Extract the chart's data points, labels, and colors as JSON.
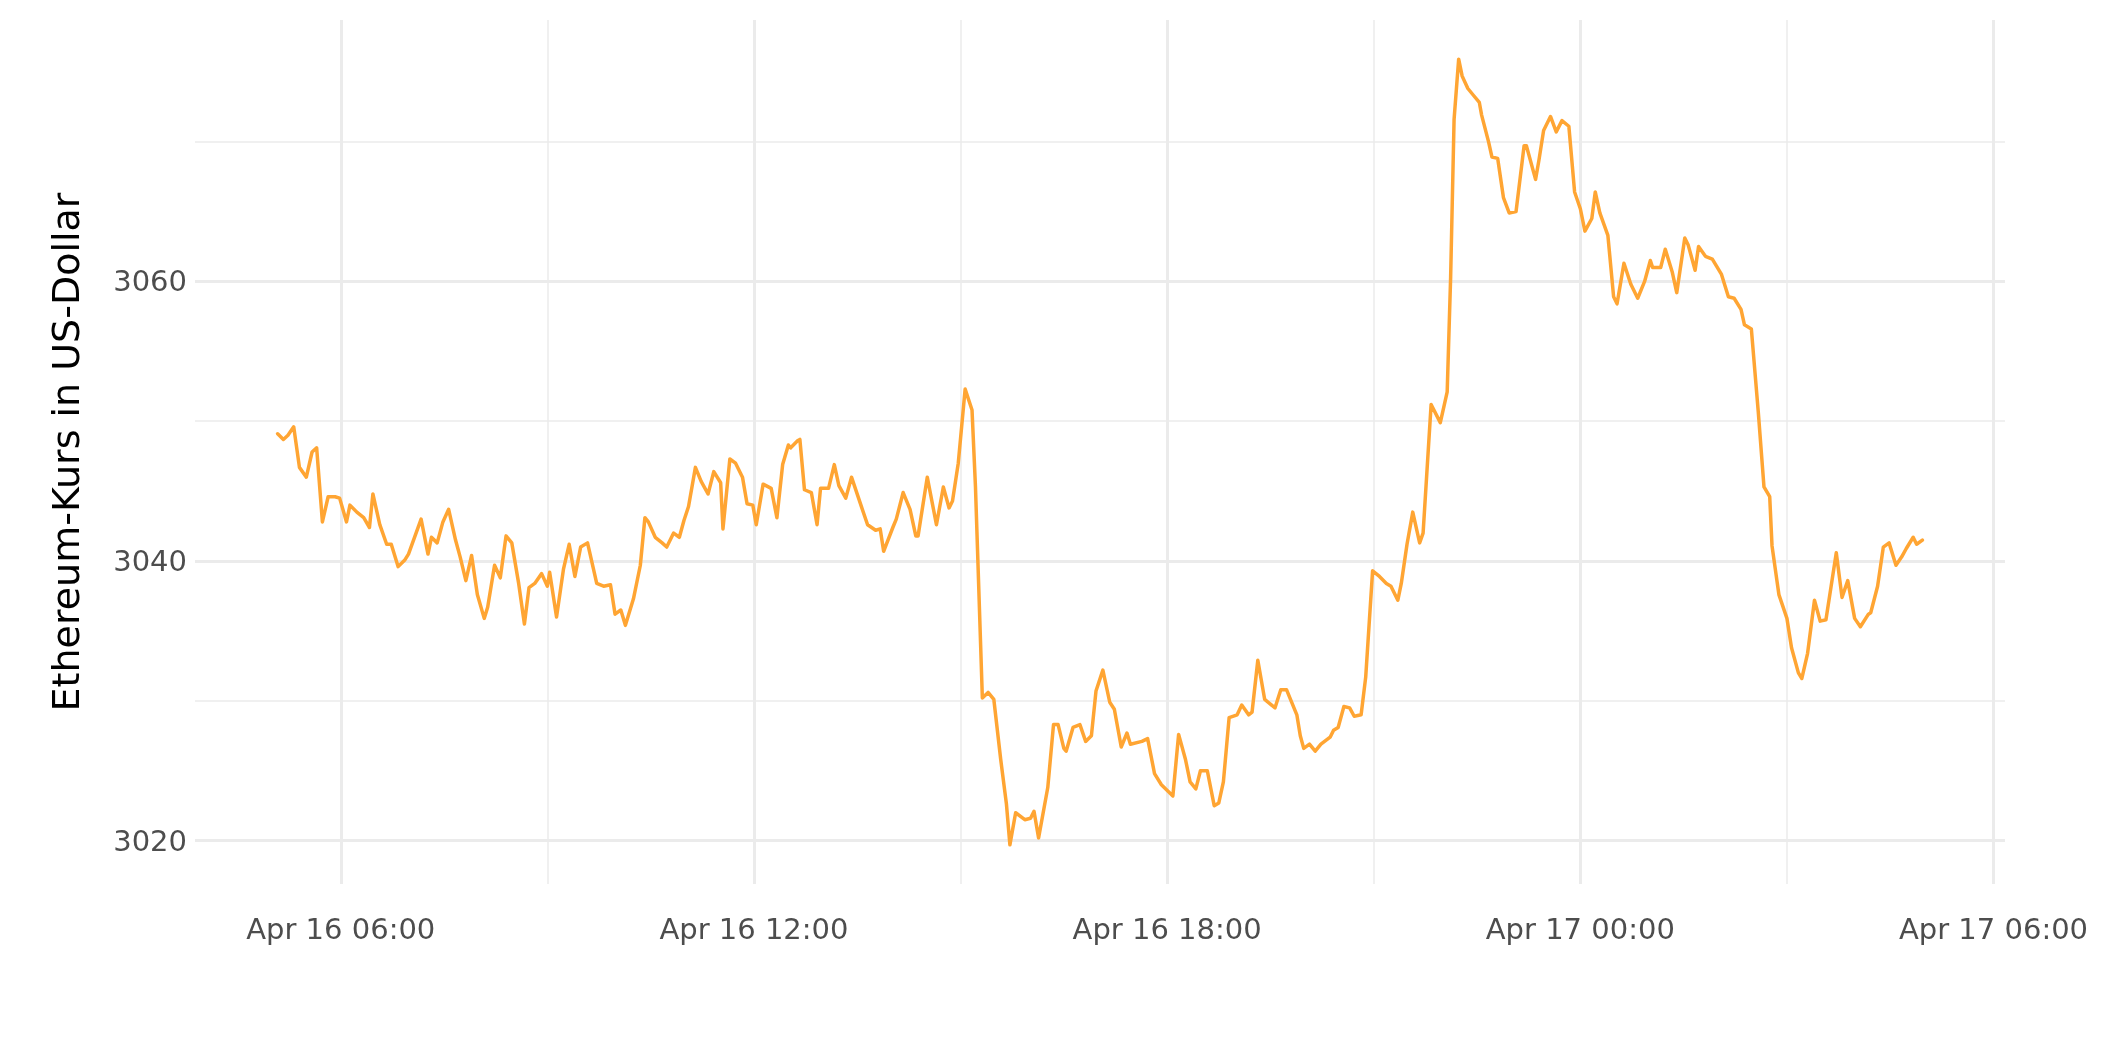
{
  "chart_data": {
    "type": "line",
    "ylabel": "Ethereum-Kurs in US-Dollar",
    "x": [
      "--04-16T05:05",
      "--04-16T05:10",
      "--04-16T05:14",
      "--04-16T05:19",
      "--04-16T05:24",
      "--04-16T05:30",
      "--04-16T05:35",
      "--04-16T05:39",
      "--04-16T05:44",
      "--04-16T05:49",
      "--04-16T05:55",
      "--04-16T05:59",
      "--04-16T06:05",
      "--04-16T06:08",
      "--04-16T06:14",
      "--04-16T06:20",
      "--04-16T06:25",
      "--04-16T06:28",
      "--04-16T06:34",
      "--04-16T06:40",
      "--04-16T06:44",
      "--04-16T06:50",
      "--04-16T06:56",
      "--04-16T06:59",
      "--04-16T07:10",
      "--04-16T07:16",
      "--04-16T07:19",
      "--04-16T07:24",
      "--04-16T07:29",
      "--04-16T07:34",
      "--04-16T07:40",
      "--04-16T07:44",
      "--04-16T07:49",
      "--04-16T07:54",
      "--04-16T07:59",
      "--04-16T08:05",
      "--04-16T08:08",
      "--04-16T08:14",
      "--04-16T08:19",
      "--04-16T08:24",
      "--04-16T08:29",
      "--04-16T08:35",
      "--04-16T08:40",
      "--04-16T08:44",
      "--04-16T08:49",
      "--04-16T08:55",
      "--04-16T09:00",
      "--04-16T09:02",
      "--04-16T09:08",
      "--04-16T09:14",
      "--04-16T09:19",
      "--04-16T09:24",
      "--04-16T09:29",
      "--04-16T09:35",
      "--04-16T09:40",
      "--04-16T09:43",
      "--04-16T09:49",
      "--04-16T09:55",
      "--04-16T09:59",
      "--04-16T10:04",
      "--04-16T10:08",
      "--04-16T10:15",
      "--04-16T10:21",
      "--04-16T10:25",
      "--04-16T10:28",
      "--04-16T10:34",
      "--04-16T10:40",
      "--04-16T10:44",
      "--04-16T10:50",
      "--04-16T10:55",
      "--04-16T10:59",
      "--04-16T11:03",
      "--04-16T11:09",
      "--04-16T11:14",
      "--04-16T11:20",
      "--04-16T11:25",
      "--04-16T11:31",
      "--04-16T11:33",
      "--04-16T11:39",
      "--04-16T11:44",
      "--04-16T11:47",
      "--04-16T11:50",
      "--04-16T11:54",
      "--04-16T11:59",
      "--04-16T12:02",
      "--04-16T12:08",
      "--04-16T12:15",
      "--04-16T12:20",
      "--04-16T12:25",
      "--04-16T12:30",
      "--04-16T12:32",
      "--04-16T12:38",
      "--04-16T12:40",
      "--04-16T12:44",
      "--04-16T12:50",
      "--04-16T12:55",
      "--04-16T12:58",
      "--04-16T13:05",
      "--04-16T13:10",
      "--04-16T13:14",
      "--04-16T13:20",
      "--04-16T13:25",
      "--04-16T13:34",
      "--04-16T13:39",
      "--04-16T13:46",
      "--04-16T13:50",
      "--04-16T13:53",
      "--04-16T14:01",
      "--04-16T14:04",
      "--04-16T14:10",
      "--04-16T14:16",
      "--04-16T14:21",
      "--04-16T14:23",
      "--04-16T14:31",
      "--04-16T14:39",
      "--04-16T14:45",
      "--04-16T14:50",
      "--04-16T14:53",
      "--04-16T14:58",
      "--04-16T15:04",
      "--04-16T15:10",
      "--04-16T15:13",
      "--04-16T15:19",
      "--04-16T15:24",
      "--04-16T15:29",
      "--04-16T15:35",
      "--04-16T15:40",
      "--04-16T15:43",
      "--04-16T15:48",
      "--04-16T15:56",
      "--04-16T16:01",
      "--04-16T16:04",
      "--04-16T16:08",
      "--04-16T16:16",
      "--04-16T16:21",
      "--04-16T16:25",
      "--04-16T16:30",
      "--04-16T16:32",
      "--04-16T16:38",
      "--04-16T16:44",
      "--04-16T16:49",
      "--04-16T16:54",
      "--04-16T16:58",
      "--04-16T17:04",
      "--04-16T17:10",
      "--04-16T17:14",
      "--04-16T17:20",
      "--04-16T17:25",
      "--04-16T17:28",
      "--04-16T17:38",
      "--04-16T17:43",
      "--04-16T17:49",
      "--04-16T17:55",
      "--04-16T18:05",
      "--04-16T18:10",
      "--04-16T18:16",
      "--04-16T18:20",
      "--04-16T18:25",
      "--04-16T18:29",
      "--04-16T18:35",
      "--04-16T18:41",
      "--04-16T18:45",
      "--04-16T18:49",
      "--04-16T18:54",
      "--04-16T19:01",
      "--04-16T19:05",
      "--04-16T19:11",
      "--04-16T19:14",
      "--04-16T19:19",
      "--04-16T19:25",
      "--04-16T19:34",
      "--04-16T19:39",
      "--04-16T19:44",
      "--04-16T19:48",
      "--04-16T19:53",
      "--04-16T19:56",
      "--04-16T19:59",
      "--04-16T20:04",
      "--04-16T20:09",
      "--04-16T20:14",
      "--04-16T20:22",
      "--04-16T20:25",
      "--04-16T20:29",
      "--04-16T20:34",
      "--04-16T20:39",
      "--04-16T20:43",
      "--04-16T20:49",
      "--04-16T20:53",
      "--04-16T20:59",
      "--04-16T21:05",
      "--04-16T21:11",
      "--04-16T21:15",
      "--04-16T21:21",
      "--04-16T21:24",
      "--04-16T21:29",
      "--04-16T21:34",
      "--04-16T21:40",
      "--04-16T21:43",
      "--04-16T21:50",
      "--04-16T21:58",
      "--04-16T22:04",
      "--04-16T22:07",
      "--04-16T22:10",
      "--04-16T22:14",
      "--04-16T22:17",
      "--04-16T22:22",
      "--04-16T22:27",
      "--04-16T22:32",
      "--04-16T22:34",
      "--04-16T22:40",
      "--04-16T22:43",
      "--04-16T22:48",
      "--04-16T22:53",
      "--04-16T22:58",
      "--04-16T23:04",
      "--04-16T23:11",
      "--04-16T23:13",
      "--04-16T23:21",
      "--04-16T23:24",
      "--04-16T23:28",
      "--04-16T23:34",
      "--04-16T23:39",
      "--04-16T23:44",
      "--04-16T23:50",
      "--04-16T23:55",
      "--04-17T00:00",
      "--04-17T00:04",
      "--04-17T00:10",
      "--04-17T00:13",
      "--04-17T00:17",
      "--04-17T00:24",
      "--04-17T00:29",
      "--04-17T00:32",
      "--04-17T00:38",
      "--04-17T00:44",
      "--04-17T00:50",
      "--04-17T00:56",
      "--04-17T01:01",
      "--04-17T01:03",
      "--04-17T01:10",
      "--04-17T01:14",
      "--04-17T01:20",
      "--04-17T01:24",
      "--04-17T01:31",
      "--04-17T01:34",
      "--04-17T01:40",
      "--04-17T01:43",
      "--04-17T01:49",
      "--04-17T01:55",
      "--04-17T02:03",
      "--04-17T02:09",
      "--04-17T02:14",
      "--04-17T02:20",
      "--04-17T02:23",
      "--04-17T02:29",
      "--04-17T02:35",
      "--04-17T02:40",
      "--04-17T02:45",
      "--04-17T02:47",
      "--04-17T02:53",
      "--04-17T03:00",
      "--04-17T03:04",
      "--04-17T03:10",
      "--04-17T03:13",
      "--04-17T03:18",
      "--04-17T03:24",
      "--04-17T03:29",
      "--04-17T03:34",
      "--04-17T03:43",
      "--04-17T03:48",
      "--04-17T03:53",
      "--04-17T03:59",
      "--04-17T04:04",
      "--04-17T04:11",
      "--04-17T04:13",
      "--04-17T04:19",
      "--04-17T04:24",
      "--04-17T04:29",
      "--04-17T04:35",
      "--04-17T04:40",
      "--04-17T04:44",
      "--04-17T04:50",
      "--04-17T04:53",
      "--04-17T04:58"
    ],
    "series": [
      {
        "color": "#ffa533",
        "values": [
          3049.1,
          3048.7,
          3049.0,
          3049.6,
          3046.7,
          3046.0,
          3047.8,
          3048.1,
          3042.8,
          3044.6,
          3044.6,
          3044.5,
          3042.8,
          3044.0,
          3043.5,
          3043.1,
          3042.4,
          3044.8,
          3042.6,
          3041.2,
          3041.2,
          3039.6,
          3040.1,
          3040.5,
          3043.0,
          3040.5,
          3041.7,
          3041.3,
          3042.8,
          3043.7,
          3041.5,
          3040.3,
          3038.6,
          3040.4,
          3037.6,
          3035.9,
          3036.7,
          3039.7,
          3038.8,
          3041.8,
          3041.3,
          3038.4,
          3035.5,
          3038.1,
          3038.4,
          3039.1,
          3038.2,
          3039.2,
          3036.0,
          3039.4,
          3041.2,
          3038.9,
          3041.0,
          3041.3,
          3039.5,
          3038.4,
          3038.2,
          3038.3,
          3036.2,
          3036.5,
          3035.4,
          3037.3,
          3039.7,
          3043.1,
          3042.8,
          3041.7,
          3041.3,
          3041.0,
          3042.0,
          3041.7,
          3042.9,
          3043.9,
          3046.7,
          3045.7,
          3044.8,
          3046.4,
          3045.6,
          3042.3,
          3047.3,
          3047.0,
          3046.5,
          3046.0,
          3044.1,
          3044.0,
          3042.6,
          3045.5,
          3045.2,
          3043.1,
          3046.9,
          3048.3,
          3048.1,
          3048.6,
          3048.7,
          3045.1,
          3044.9,
          3042.6,
          3045.2,
          3045.2,
          3046.9,
          3045.4,
          3044.5,
          3046.0,
          3043.8,
          3042.6,
          3042.2,
          3042.3,
          3040.7,
          3042.4,
          3043.0,
          3044.9,
          3043.7,
          3041.8,
          3041.8,
          3046.0,
          3042.6,
          3045.3,
          3043.8,
          3044.3,
          3047.0,
          3052.3,
          3050.8,
          3045.3,
          3030.2,
          3030.6,
          3030.1,
          3025.8,
          3022.6,
          3019.7,
          3022.0,
          3021.5,
          3021.6,
          3022.1,
          3020.2,
          3023.8,
          3028.3,
          3028.3,
          3026.6,
          3026.4,
          3028.1,
          3028.3,
          3027.1,
          3027.5,
          3030.7,
          3032.2,
          3029.9,
          3029.4,
          3026.7,
          3027.7,
          3026.9,
          3027.1,
          3027.3,
          3024.8,
          3024.0,
          3023.2,
          3027.6,
          3025.8,
          3024.2,
          3023.7,
          3025.0,
          3025.0,
          3022.5,
          3022.7,
          3024.2,
          3028.8,
          3029.0,
          3029.7,
          3029.0,
          3029.2,
          3032.9,
          3030.1,
          3029.5,
          3030.8,
          3030.8,
          3030.0,
          3029.0,
          3027.5,
          3026.6,
          3026.9,
          3026.4,
          3026.9,
          3027.4,
          3027.9,
          3028.1,
          3029.6,
          3029.5,
          3028.9,
          3029.0,
          3031.7,
          3039.3,
          3038.9,
          3038.4,
          3038.2,
          3037.2,
          3038.4,
          3041.2,
          3043.5,
          3041.3,
          3042.0,
          3051.2,
          3049.9,
          3052.1,
          3060.3,
          3071.6,
          3075.9,
          3074.7,
          3073.8,
          3073.3,
          3072.8,
          3071.9,
          3070.0,
          3068.9,
          3068.8,
          3066.0,
          3064.9,
          3065.0,
          3069.7,
          3069.7,
          3067.3,
          3068.7,
          3070.8,
          3071.8,
          3070.7,
          3071.5,
          3071.1,
          3066.4,
          3065.2,
          3063.6,
          3064.5,
          3066.4,
          3064.9,
          3063.3,
          3058.9,
          3058.4,
          3061.3,
          3059.8,
          3058.8,
          3060.0,
          3061.5,
          3061.0,
          3061.0,
          3062.3,
          3060.7,
          3059.2,
          3063.1,
          3062.6,
          3060.8,
          3062.5,
          3061.8,
          3061.6,
          3060.5,
          3058.9,
          3058.8,
          3058.0,
          3056.9,
          3056.6,
          3050.7,
          3045.3,
          3044.6,
          3041.1,
          3037.6,
          3035.9,
          3033.8,
          3032.0,
          3031.6,
          3033.4,
          3037.2,
          3035.7,
          3035.8,
          3040.6,
          3037.4,
          3038.6,
          3035.9,
          3035.3,
          3036.2,
          3036.3,
          3038.2,
          3041.0,
          3041.3,
          3039.7,
          3040.3,
          3040.9,
          3041.7,
          3041.2,
          3041.5
        ]
      }
    ],
    "xlim": [
      "--04-16T03:53",
      "--04-17T06:10"
    ],
    "xticks": [
      {
        "value": "--04-16T06:00",
        "label": "Apr 16 06:00"
      },
      {
        "value": "--04-16T09:00",
        "label": null
      },
      {
        "value": "--04-16T12:00",
        "label": "Apr 16 12:00"
      },
      {
        "value": "--04-16T15:00",
        "label": null
      },
      {
        "value": "--04-16T18:00",
        "label": "Apr 16 18:00"
      },
      {
        "value": "--04-16T21:00",
        "label": null
      },
      {
        "value": "--04-17T00:00",
        "label": "Apr 17 00:00"
      },
      {
        "value": "--04-17T03:00",
        "label": null
      },
      {
        "value": "--04-17T06:00",
        "label": "Apr 17 06:00"
      }
    ],
    "ylim": [
      3016.9,
      3078.7
    ],
    "yticks": [
      3020,
      {
        "value": 3030,
        "label": null
      },
      3040,
      {
        "value": 3050,
        "label": null
      },
      3060,
      {
        "value": 3070,
        "label": null
      }
    ],
    "grid": true,
    "line_style": "solid",
    "marker": "none"
  }
}
